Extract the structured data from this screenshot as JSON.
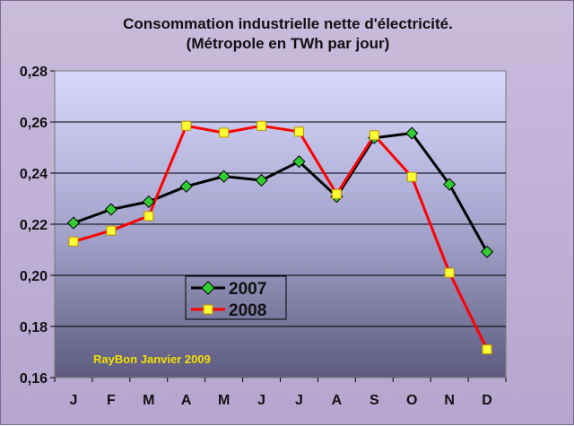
{
  "chart_data": {
    "type": "line",
    "title": "Consommation industrielle nette d'électricité.",
    "subtitle": "(Métropole en TWh par jour)",
    "xlabel": "",
    "ylabel": "",
    "categories": [
      "J",
      "F",
      "M",
      "A",
      "M",
      "J",
      "J",
      "A",
      "S",
      "O",
      "N",
      "D"
    ],
    "ylim": [
      0.16,
      0.28
    ],
    "yticks": [
      "0,16",
      "0,18",
      "0,20",
      "0,22",
      "0,24",
      "0,26",
      "0,28"
    ],
    "ytick_values": [
      0.16,
      0.18,
      0.2,
      0.22,
      0.24,
      0.26,
      0.28
    ],
    "grid": true,
    "legend_position": "center-left",
    "series": [
      {
        "name": "2007",
        "color": "#000000",
        "marker": "diamond",
        "marker_color": "#33cc33",
        "values": [
          0.2205,
          0.2258,
          0.2288,
          0.2348,
          0.2387,
          0.2372,
          0.2445,
          0.2308,
          0.2538,
          0.2556,
          0.2356,
          0.2092
        ]
      },
      {
        "name": "2008",
        "color": "#ff0000",
        "marker": "square",
        "marker_color": "#ffff33",
        "values": [
          0.2132,
          0.2175,
          0.2232,
          0.2585,
          0.2558,
          0.2585,
          0.2562,
          0.2318,
          0.2548,
          0.2385,
          0.201,
          0.171
        ]
      }
    ],
    "annotations": [
      "RayBon Janvier 2009"
    ]
  }
}
